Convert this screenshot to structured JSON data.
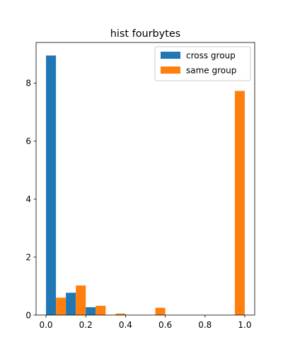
{
  "chart_data": {
    "type": "bar",
    "title": "hist fourbytes",
    "xlabel": "",
    "ylabel": "",
    "xlim": [
      -0.05,
      1.05
    ],
    "ylim": [
      0,
      9.4
    ],
    "xticks": [
      0.0,
      0.2,
      0.4,
      0.6,
      0.8,
      1.0
    ],
    "xtick_labels": [
      "0.0",
      "0.2",
      "0.4",
      "0.6",
      "0.8",
      "1.0"
    ],
    "yticks": [
      0,
      2,
      4,
      6,
      8
    ],
    "ytick_labels": [
      "0",
      "2",
      "4",
      "6",
      "8"
    ],
    "bin_edges": [
      0.0,
      0.1,
      0.2,
      0.3,
      0.4,
      0.5,
      0.6,
      0.7,
      0.8,
      0.9,
      1.0
    ],
    "grid": false,
    "legend": {
      "position": "top-right"
    },
    "series": [
      {
        "name": "cross group",
        "color": "#1f77b4",
        "values": [
          8.95,
          0.77,
          0.27,
          0,
          0,
          0,
          0,
          0,
          0,
          0
        ]
      },
      {
        "name": "same group",
        "color": "#ff7f0e",
        "values": [
          0.6,
          1.02,
          0.32,
          0.05,
          0,
          0.25,
          0,
          0,
          0,
          7.73
        ]
      }
    ]
  }
}
